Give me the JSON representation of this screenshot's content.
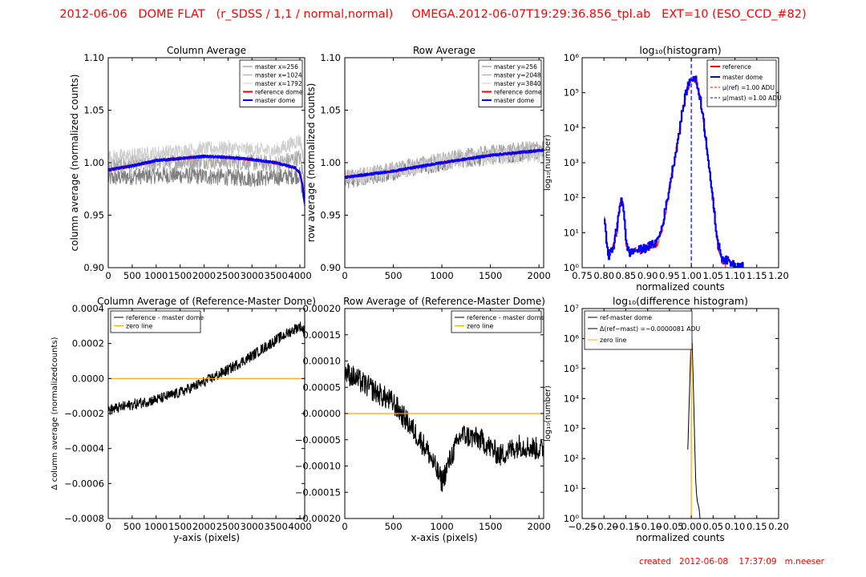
{
  "title": "2012-06-06   DOME FLAT   (r_SDSS / 1,1 / normal,normal)     OMEGA.2012-06-07T19:29:36.856_tpl.ab   EXT=10 (ESO_CCD_#82)",
  "footer": "created   2012-06-08    17:37:09   m.neeser",
  "colors": {
    "title": "#ff0000",
    "master": "#0000ff",
    "reference": "#ff0000",
    "zero": "#ffa500",
    "diff": "#000000",
    "gray1": "#7f7f7f",
    "gray2": "#a8a8a8",
    "gray3": "#cfcfcf",
    "dash": "#0000ff"
  },
  "chart_data": [
    {
      "id": "colavg",
      "type": "line",
      "title": "Column Average",
      "xlabel": "",
      "ylabel": "column average (normalized counts)",
      "xlim": [
        0,
        4100
      ],
      "ylim": [
        0.9,
        1.1
      ],
      "xticks": [
        "0",
        "500",
        "1000",
        "1500",
        "2000",
        "2500",
        "3000",
        "3500",
        "4000"
      ],
      "xtick_values": [
        0,
        500,
        1000,
        1500,
        2000,
        2500,
        3000,
        3500,
        4000
      ],
      "yticks": [
        "0.90",
        "0.95",
        "1.00",
        "1.05",
        "1.10"
      ],
      "ytick_values": [
        0.9,
        0.95,
        1.0,
        1.05,
        1.1
      ],
      "legend": [
        "master x=256",
        "master x=1024",
        "master x=1792",
        "reference dome",
        "master dome"
      ],
      "legend_colors": [
        "#7f7f7f",
        "#a8a8a8",
        "#cfcfcf",
        "#ff0000",
        "#0000ff"
      ],
      "legend_position": "top-right",
      "series": [
        {
          "name": "master x=256",
          "x": [
            0,
            500,
            1000,
            1500,
            2000,
            2500,
            3000,
            3500,
            4000,
            4096
          ],
          "y": [
            0.985,
            0.987,
            0.988,
            0.988,
            0.987,
            0.986,
            0.985,
            0.986,
            0.988,
            0.96
          ],
          "noise": 0.008
        },
        {
          "name": "master x=1024",
          "x": [
            0,
            500,
            1000,
            1500,
            2000,
            2500,
            3000,
            3500,
            4000,
            4096
          ],
          "y": [
            0.997,
            0.999,
            1.0,
            1.001,
            1.002,
            1.001,
            1.0,
            0.999,
            1.005,
            0.98
          ],
          "noise": 0.008
        },
        {
          "name": "master x=1792",
          "x": [
            0,
            500,
            1000,
            1500,
            2000,
            2500,
            3000,
            3500,
            4000,
            4096
          ],
          "y": [
            1.005,
            1.007,
            1.009,
            1.011,
            1.013,
            1.014,
            1.012,
            1.011,
            1.022,
            1.0
          ],
          "noise": 0.007
        },
        {
          "name": "reference dome",
          "x": [
            0,
            500,
            1000,
            1500,
            2000,
            2500,
            3000,
            3500,
            3900,
            4000,
            4050,
            4096
          ],
          "y": [
            0.993,
            0.997,
            1.002,
            1.004,
            1.006,
            1.005,
            1.003,
            1.0,
            0.995,
            0.99,
            0.98,
            0.962
          ],
          "noise": 0.001
        },
        {
          "name": "master dome",
          "x": [
            0,
            500,
            1000,
            1500,
            2000,
            2500,
            3000,
            3500,
            3900,
            4000,
            4050,
            4096
          ],
          "y": [
            0.993,
            0.997,
            1.002,
            1.004,
            1.006,
            1.005,
            1.003,
            1.0,
            0.995,
            0.99,
            0.98,
            0.962
          ],
          "noise": 0.001
        }
      ]
    },
    {
      "id": "rowavg",
      "type": "line",
      "title": "Row Average",
      "xlabel": "",
      "ylabel": "row average (normalized counts)",
      "xlim": [
        0,
        2048
      ],
      "ylim": [
        0.9,
        1.1
      ],
      "xticks": [
        "0",
        "500",
        "1000",
        "1500",
        "2000"
      ],
      "xtick_values": [
        0,
        500,
        1000,
        1500,
        2000
      ],
      "yticks": [
        "0.90",
        "0.95",
        "1.00",
        "1.05",
        "1.10"
      ],
      "ytick_values": [
        0.9,
        0.95,
        1.0,
        1.05,
        1.1
      ],
      "legend": [
        "master y=256",
        "master y=2048",
        "master y=3840",
        "reference dome",
        "master dome"
      ],
      "legend_colors": [
        "#7f7f7f",
        "#a8a8a8",
        "#cfcfcf",
        "#ff0000",
        "#0000ff"
      ],
      "legend_position": "top-right",
      "series": [
        {
          "name": "master y=256",
          "x": [
            0,
            500,
            1000,
            1500,
            2048
          ],
          "y": [
            0.982,
            0.99,
            0.999,
            1.005,
            1.01
          ],
          "noise": 0.007
        },
        {
          "name": "master y=2048",
          "x": [
            0,
            500,
            1000,
            1500,
            2048
          ],
          "y": [
            0.986,
            0.994,
            1.003,
            1.01,
            1.015
          ],
          "noise": 0.007
        },
        {
          "name": "master y=3840",
          "x": [
            0,
            500,
            1000,
            1500,
            2048
          ],
          "y": [
            0.985,
            0.992,
            1.001,
            1.006,
            1.008
          ],
          "noise": 0.008
        },
        {
          "name": "reference dome",
          "x": [
            0,
            500,
            1000,
            1500,
            2048
          ],
          "y": [
            0.986,
            0.992,
            1.0,
            1.007,
            1.012
          ],
          "noise": 0.001
        },
        {
          "name": "master dome",
          "x": [
            0,
            500,
            1000,
            1500,
            2048
          ],
          "y": [
            0.986,
            0.992,
            1.0,
            1.007,
            1.012
          ],
          "noise": 0.001
        }
      ]
    },
    {
      "id": "hist",
      "type": "line",
      "title": "log₁₀(histogram)",
      "xlabel": "normalized counts",
      "ylabel": "log₁₀(number)",
      "xlim": [
        0.75,
        1.2
      ],
      "ylim": [
        0,
        6
      ],
      "yscale": "log",
      "xticks": [
        "0.75",
        "0.80",
        "0.85",
        "0.90",
        "0.95",
        "1.00",
        "1.05",
        "1.10",
        "1.15",
        "1.20"
      ],
      "xtick_values": [
        0.75,
        0.8,
        0.85,
        0.9,
        0.95,
        1.0,
        1.05,
        1.1,
        1.15,
        1.2
      ],
      "yticks": [
        "10⁰",
        "10¹",
        "10²",
        "10³",
        "10⁴",
        "10⁵",
        "10⁶"
      ],
      "ytick_values": [
        0,
        1,
        2,
        3,
        4,
        5,
        6
      ],
      "legend": [
        "reference",
        "master dome",
        "μ(ref) =1.00 ADU",
        "μ(mast) =1.00 ADU"
      ],
      "legend_colors": [
        "#ff0000",
        "#0000ff",
        "#ff0000",
        "#0000ff"
      ],
      "legend_position": "top-right",
      "vline_x": 1.0,
      "series": [
        {
          "name": "reference",
          "x": [
            0.8,
            0.81,
            0.82,
            0.83,
            0.835,
            0.84,
            0.845,
            0.85,
            0.86,
            0.87,
            0.88,
            0.89,
            0.9,
            0.91,
            0.92,
            0.93,
            0.94,
            0.95,
            0.96,
            0.97,
            0.98,
            0.99,
            1.0,
            1.01,
            1.02,
            1.03,
            1.04,
            1.05,
            1.06,
            1.07,
            1.08
          ],
          "y": [
            1.35,
            0.3,
            0.6,
            1.1,
            1.7,
            2.0,
            1.6,
            0.6,
            0.4,
            0.5,
            0.45,
            0.5,
            0.6,
            0.6,
            0.7,
            1.0,
            1.6,
            2.3,
            3.0,
            3.7,
            4.5,
            5.1,
            5.45,
            5.35,
            4.8,
            3.9,
            2.9,
            1.7,
            0.6,
            0.2,
            0.0
          ],
          "noise": 0.12
        },
        {
          "name": "master dome",
          "x": [
            0.8,
            0.81,
            0.82,
            0.83,
            0.835,
            0.84,
            0.845,
            0.85,
            0.86,
            0.87,
            0.88,
            0.89,
            0.9,
            0.91,
            0.92,
            0.93,
            0.94,
            0.95,
            0.96,
            0.97,
            0.98,
            0.99,
            1.0,
            1.01,
            1.02,
            1.03,
            1.04,
            1.05,
            1.06,
            1.07,
            1.08,
            1.1,
            1.12
          ],
          "y": [
            1.3,
            0.35,
            0.55,
            1.2,
            1.75,
            2.0,
            1.65,
            0.65,
            0.4,
            0.5,
            0.5,
            0.55,
            0.6,
            0.65,
            0.75,
            1.05,
            1.65,
            2.35,
            3.05,
            3.75,
            4.55,
            5.15,
            5.45,
            5.35,
            4.85,
            3.95,
            2.95,
            1.75,
            0.7,
            0.3,
            0.2,
            0.1,
            0.05
          ],
          "noise": 0.12
        }
      ]
    },
    {
      "id": "coldiff",
      "type": "line",
      "title": "Column Average of (Reference-Master Dome)",
      "xlabel": "y-axis (pixels)",
      "ylabel": "Δ column average (normalizedcounts)",
      "xlim": [
        0,
        4100
      ],
      "ylim": [
        -0.0008,
        0.0004
      ],
      "xticks": [
        "0",
        "500",
        "1000",
        "1500",
        "2000",
        "2500",
        "3000",
        "3500",
        "4000"
      ],
      "xtick_values": [
        0,
        500,
        1000,
        1500,
        2000,
        2500,
        3000,
        3500,
        4000
      ],
      "yticks": [
        "−0.0008",
        "−0.0006",
        "−0.0004",
        "−0.0002",
        "0.0000",
        "0.0002",
        "0.0004"
      ],
      "ytick_values": [
        -0.0008,
        -0.0006,
        -0.0004,
        -0.0002,
        0.0,
        0.0002,
        0.0004
      ],
      "legend": [
        "reference - master dome",
        "zero line"
      ],
      "legend_colors": [
        "#000000",
        "#ffa500"
      ],
      "legend_position": "top-left",
      "zero_line": 0.0,
      "series": [
        {
          "name": "reference - master dome",
          "x": [
            0,
            500,
            1000,
            1500,
            2000,
            2500,
            3000,
            3500,
            4000,
            4096
          ],
          "y": [
            -0.00018,
            -0.00015,
            -0.00012,
            -8e-05,
            -2e-05,
            5e-05,
            0.00013,
            0.00022,
            0.0003,
            0.00027
          ],
          "noise": 3e-05
        }
      ]
    },
    {
      "id": "rowdiff",
      "type": "line",
      "title": "Row Average of (Reference-Master Dome)",
      "xlabel": "x-axis (pixels)",
      "ylabel": "",
      "xlim": [
        0,
        2048
      ],
      "ylim": [
        -0.0002,
        0.0002
      ],
      "xticks": [
        "0",
        "500",
        "1000",
        "1500",
        "2000"
      ],
      "xtick_values": [
        0,
        500,
        1000,
        1500,
        2000
      ],
      "yticks": [
        "−0.00020",
        "−0.00015",
        "−0.00010",
        "−0.00005",
        "0.00000",
        "0.00005",
        "0.00010",
        "0.00015",
        "0.00020"
      ],
      "ytick_values": [
        -0.0002,
        -0.00015,
        -0.0001,
        -5e-05,
        0.0,
        5e-05,
        0.0001,
        0.00015,
        0.0002
      ],
      "legend": [
        "reference - master dome",
        "zero line"
      ],
      "legend_colors": [
        "#000000",
        "#ffa500"
      ],
      "legend_position": "top-right",
      "zero_line": 0.0,
      "series": [
        {
          "name": "reference - master dome",
          "x": [
            0,
            250,
            500,
            700,
            850,
            1000,
            1100,
            1200,
            1400,
            1600,
            1800,
            2048
          ],
          "y": [
            8e-05,
            5e-05,
            2e-05,
            -3e-05,
            -7e-05,
            -0.00013,
            -8e-05,
            -4e-05,
            -5e-05,
            -8e-05,
            -6e-05,
            -7e-05
          ],
          "noise": 2.2e-05
        }
      ]
    },
    {
      "id": "diffhist",
      "type": "line",
      "title": "log₁₀(difference histogram)",
      "xlabel": "normalized counts",
      "ylabel": "log₁₀(number)",
      "xlim": [
        -0.25,
        0.2
      ],
      "ylim": [
        0,
        7
      ],
      "yscale": "log",
      "xticks": [
        "−0.25",
        "−0.20",
        "−0.15",
        "−0.10",
        "−0.05",
        "0.00",
        "0.05",
        "0.10",
        "0.15",
        "0.20"
      ],
      "xtick_values": [
        -0.25,
        -0.2,
        -0.15,
        -0.1,
        -0.05,
        0.0,
        0.05,
        0.1,
        0.15,
        0.2
      ],
      "yticks": [
        "10⁰",
        "10¹",
        "10²",
        "10³",
        "10⁴",
        "10⁵",
        "10⁶",
        "10⁷"
      ],
      "ytick_values": [
        0,
        1,
        2,
        3,
        4,
        5,
        6,
        7
      ],
      "legend": [
        "ref-master dome",
        "Δ(ref−mast) =−0.0000081 ADU",
        "zero line"
      ],
      "legend_colors": [
        "#000000",
        "#000000",
        "#ffa500"
      ],
      "legend_position": "top-left",
      "zero_line": 0.0,
      "series": [
        {
          "name": "ref-master dome",
          "x": [
            -0.008,
            -0.006,
            -0.004,
            -0.002,
            0.0,
            0.002,
            0.004,
            0.006,
            0.008,
            0.01,
            0.012,
            0.014,
            0.016,
            0.018,
            0.02
          ],
          "y": [
            2.3,
            3.3,
            4.3,
            5.3,
            6.2,
            5.8,
            4.8,
            3.6,
            2.4,
            1.3,
            0.8,
            0.55,
            0.45,
            0.3,
            0.0
          ],
          "noise": 0.0
        }
      ]
    }
  ]
}
